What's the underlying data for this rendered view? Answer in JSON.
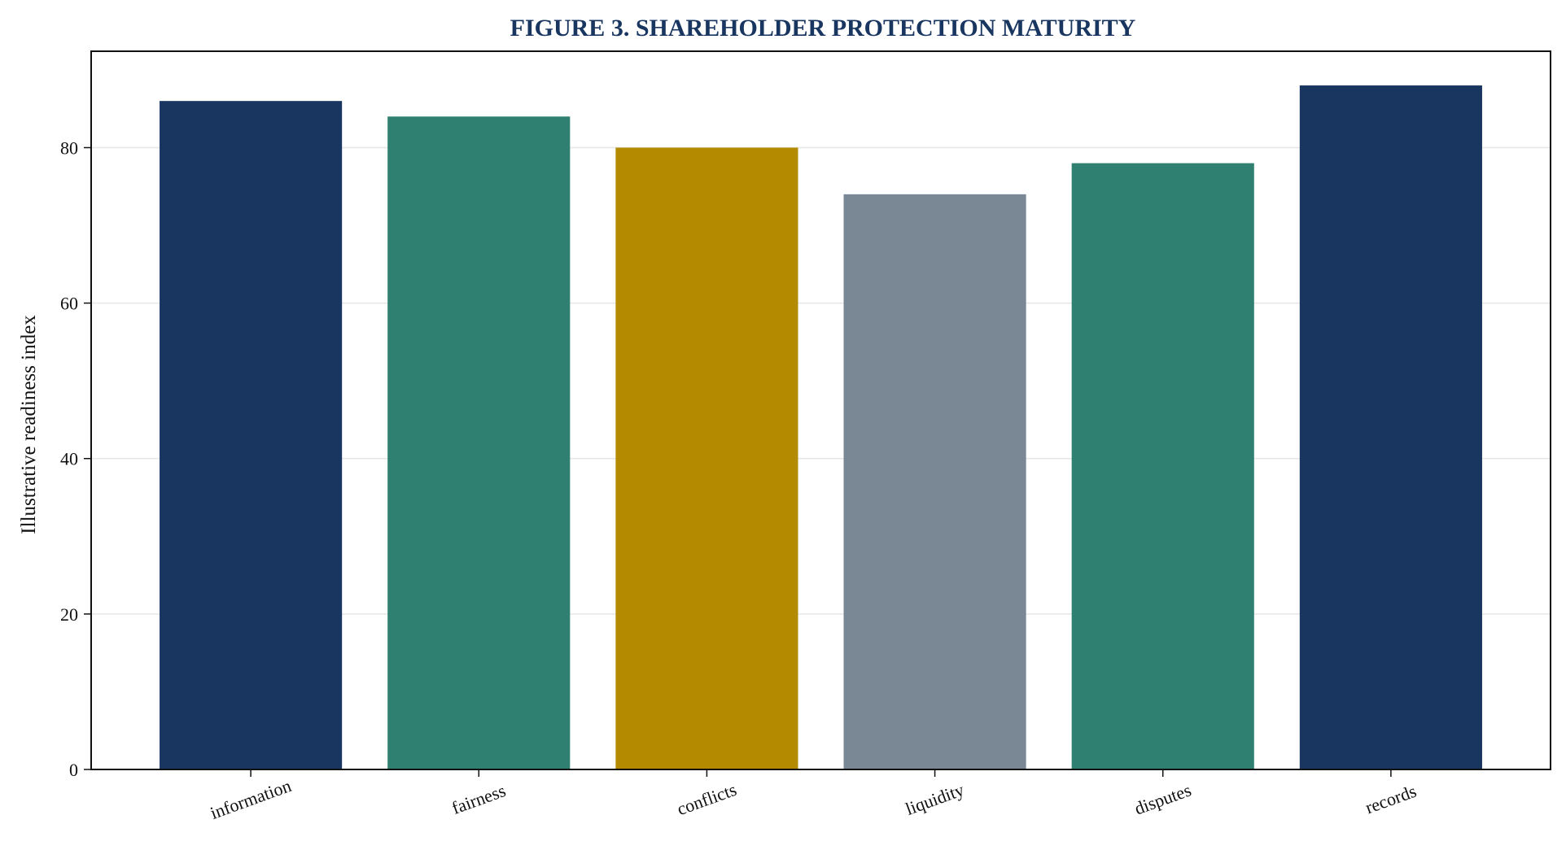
{
  "chart_data": {
    "type": "bar",
    "title": "FIGURE 3. SHAREHOLDER PROTECTION MATURITY",
    "xlabel": "",
    "ylabel": "Illustrative readiness index",
    "categories": [
      "information",
      "fairness",
      "conflicts",
      "liquidity",
      "disputes",
      "records"
    ],
    "values": [
      86,
      84,
      80,
      74,
      78,
      88
    ],
    "colors": [
      "#183660",
      "#2f8070",
      "#b38a00",
      "#7a8795",
      "#2f8070",
      "#183660"
    ],
    "ylim": [
      0,
      92.4
    ],
    "yticks": [
      0,
      20,
      40,
      60,
      80
    ],
    "grid": true,
    "x_tick_rotation_deg": -20
  }
}
